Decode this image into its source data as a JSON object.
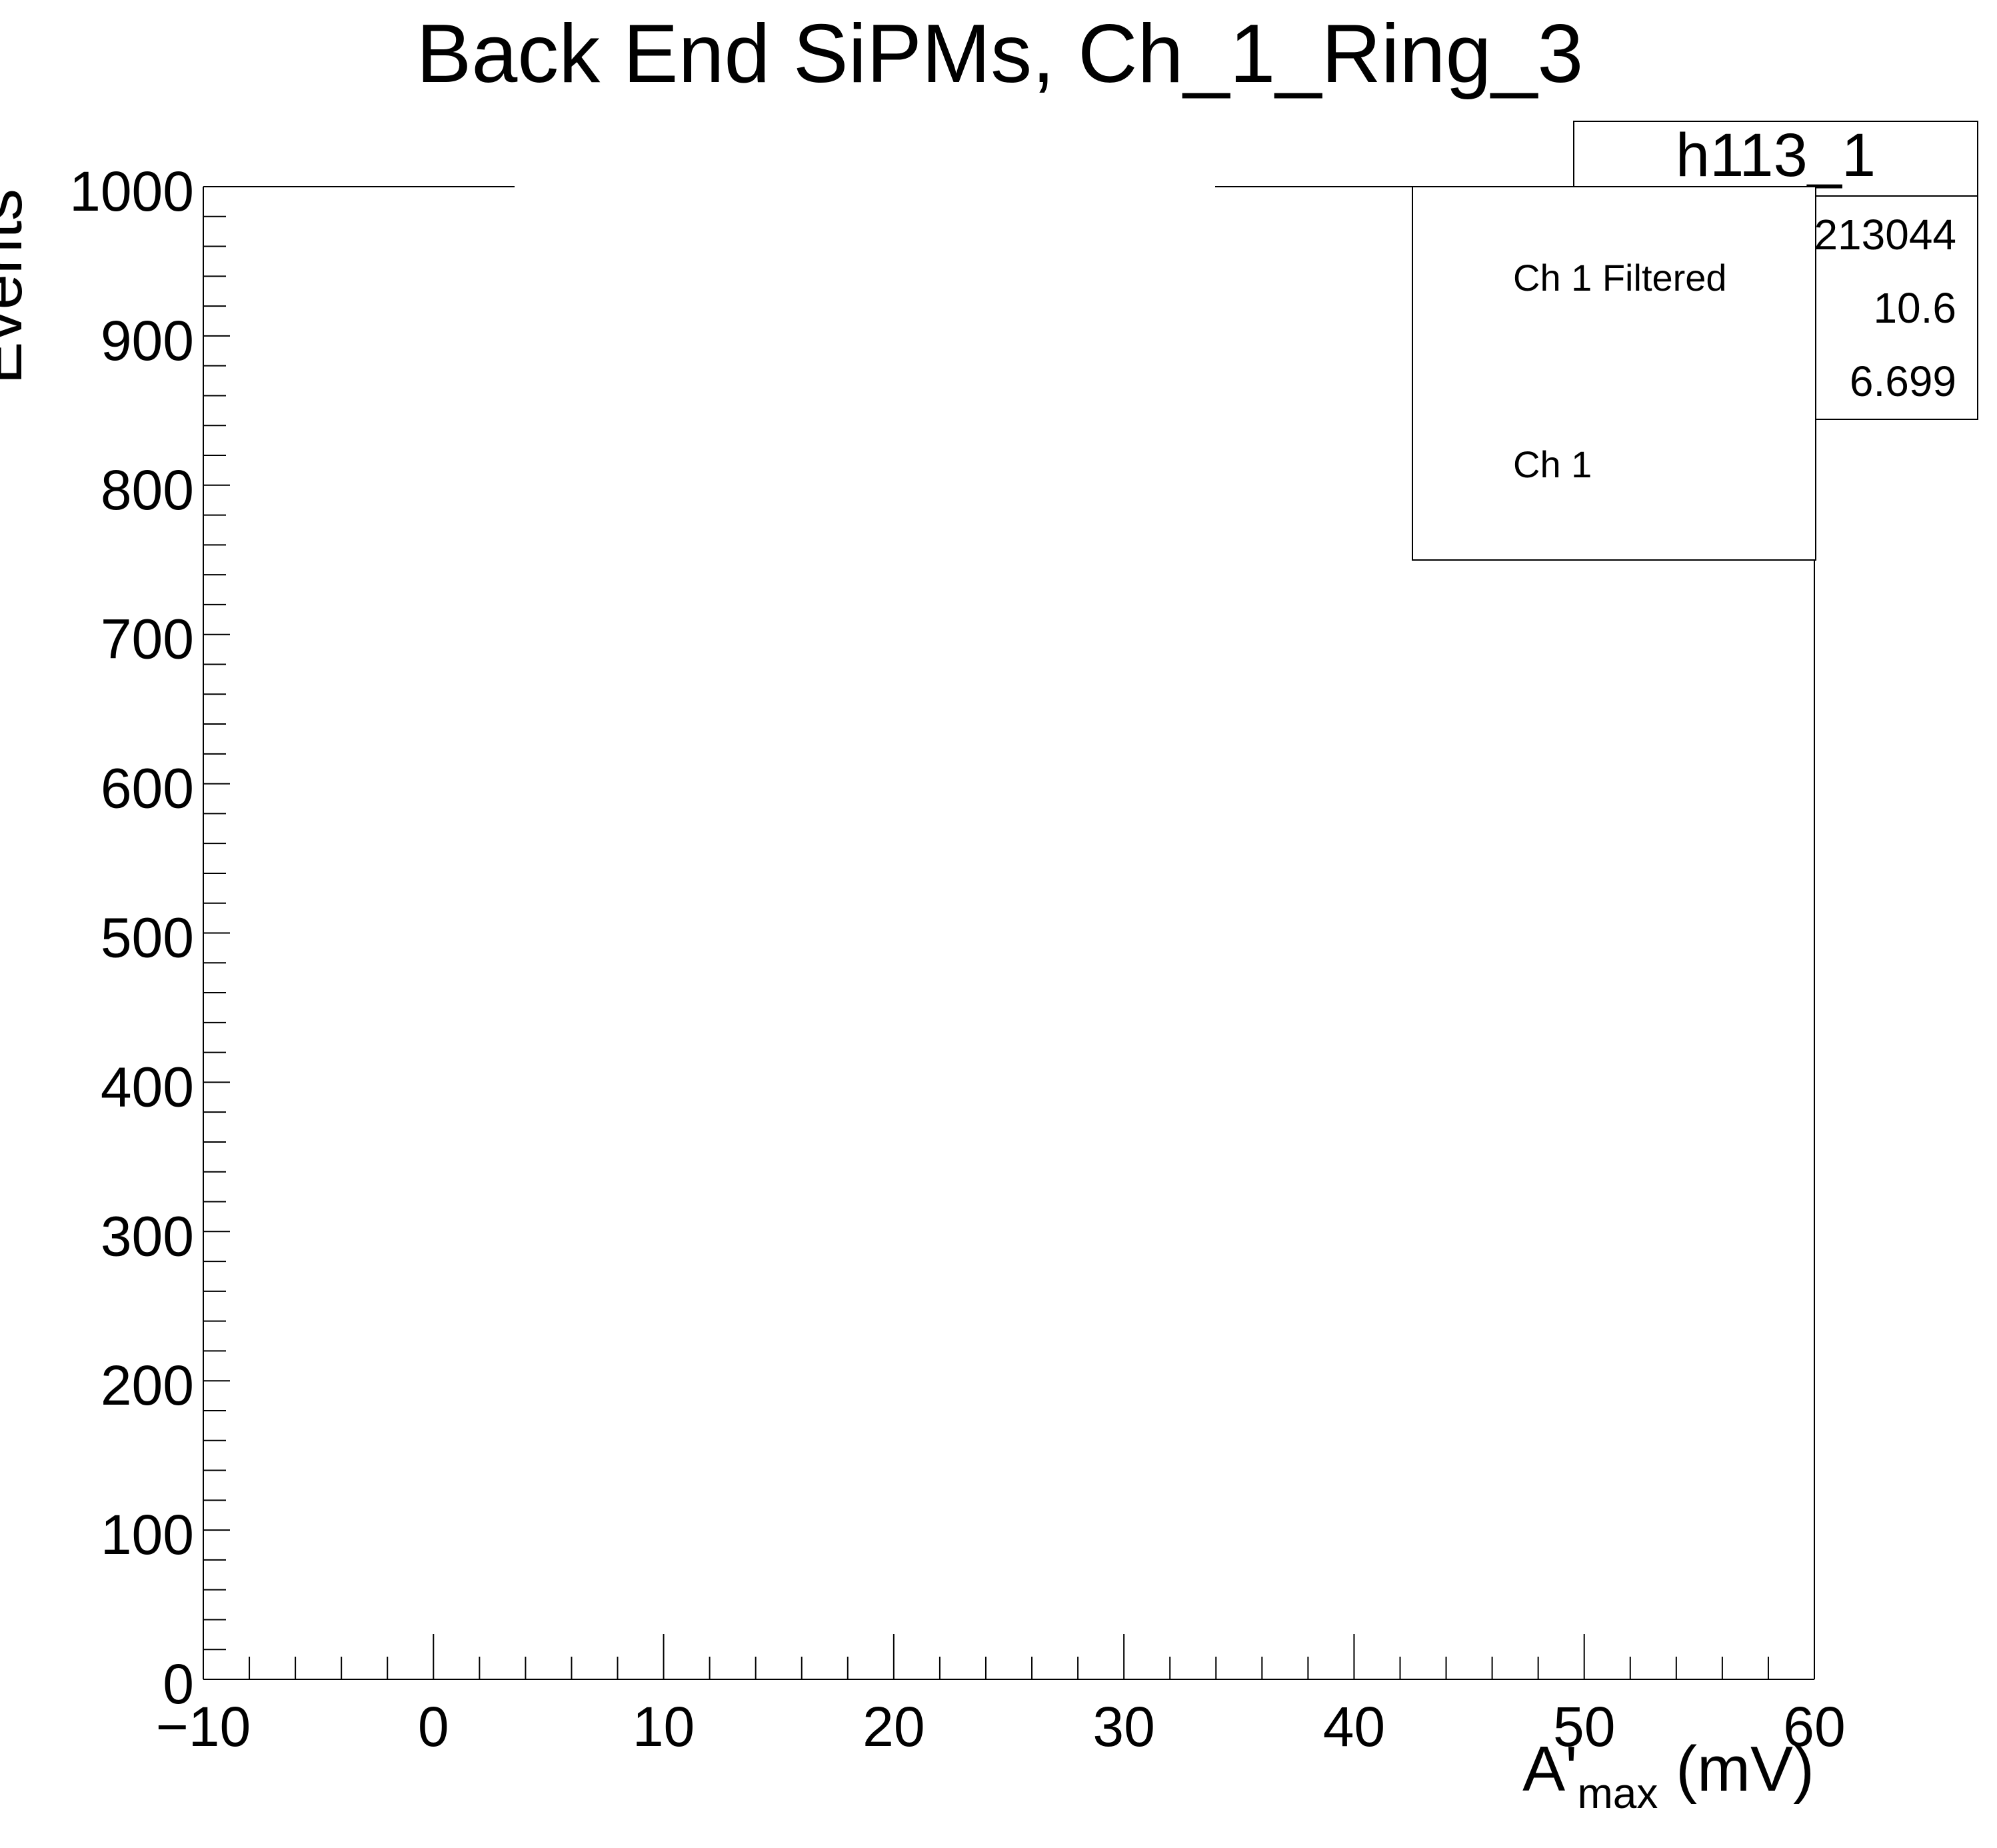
{
  "chart_data": {
    "type": "bar",
    "title": "Back End SiPMs, Ch_1_Ring_3",
    "xlabel": {
      "main": "A'",
      "subscript": "max",
      "unit": " (mV)"
    },
    "ylabel": "Events",
    "xlim": [
      -10,
      60
    ],
    "ylim": [
      0,
      1000
    ],
    "x_ticks": [
      "−10",
      "0",
      "10",
      "20",
      "30",
      "40",
      "50",
      "60"
    ],
    "x_tick_values": [
      -10,
      0,
      10,
      20,
      30,
      40,
      50,
      60
    ],
    "y_ticks": [
      "0",
      "100",
      "200",
      "300",
      "400",
      "500",
      "600",
      "700",
      "800",
      "900",
      "1000"
    ],
    "y_tick_values": [
      0,
      100,
      200,
      300,
      400,
      500,
      600,
      700,
      800,
      900,
      1000
    ],
    "series": [
      {
        "name": "Ch 1 Filtered",
        "color": "#000000",
        "values": []
      },
      {
        "name": "Ch 1",
        "color": "#000000",
        "values": []
      }
    ],
    "legend": {
      "placement": "top-right",
      "entries": [
        "Ch 1 Filtered",
        "Ch 1"
      ]
    },
    "stats_box": {
      "name": "h113_1",
      "placement": "top-right",
      "rows": [
        {
          "label": "",
          "value": "213044"
        },
        {
          "label": "",
          "value": "10.6"
        },
        {
          "label": "",
          "value": "6.699"
        }
      ]
    },
    "grid": false
  }
}
